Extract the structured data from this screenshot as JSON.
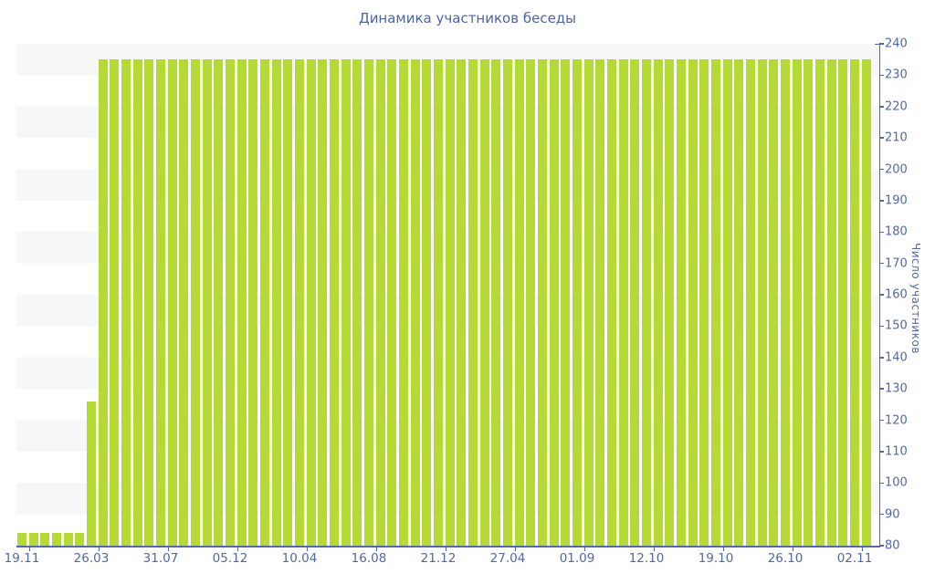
{
  "page": {
    "background": "#ffffff"
  },
  "chart_data": {
    "type": "bar",
    "title": "Динамика участников беседы",
    "ylabel": "Число участников",
    "xlabel": "",
    "y_axis_side": "right",
    "ylim": [
      80,
      240
    ],
    "ytick_labels": [
      "240",
      "230",
      "220",
      "210",
      "200",
      "190",
      "180",
      "170",
      "160",
      "150",
      "140",
      "130",
      "120",
      "110",
      "100",
      "90",
      "80"
    ],
    "x_tick_labels": [
      "19.11",
      "26.03",
      "31.07",
      "05.12",
      "10.04",
      "16.08",
      "21.12",
      "27.04",
      "01.09",
      "12.10",
      "19.10",
      "26.10",
      "02.11"
    ],
    "x_label_every_n_bars": 6,
    "bar_count": 74,
    "values": [
      84,
      84,
      84,
      84,
      84,
      84,
      126,
      235,
      235,
      235,
      235,
      235,
      235,
      235,
      235,
      235,
      235,
      235,
      235,
      235,
      235,
      235,
      235,
      235,
      235,
      235,
      235,
      235,
      235,
      235,
      235,
      235,
      235,
      235,
      235,
      235,
      235,
      235,
      235,
      235,
      235,
      235,
      235,
      235,
      235,
      235,
      235,
      235,
      235,
      235,
      235,
      235,
      235,
      235,
      235,
      235,
      235,
      235,
      235,
      235,
      235,
      235,
      235,
      235,
      235,
      235,
      235,
      235,
      235,
      235,
      235,
      235,
      235,
      235
    ],
    "grid": "alternating horizontal 10-unit stripe bands",
    "legend": "none",
    "colors": {
      "bar": "#b5da36",
      "axis": "#4e6ba8",
      "text": "#5068a6",
      "title": "#4d64a3",
      "stripe": "#f7f7f7"
    }
  }
}
